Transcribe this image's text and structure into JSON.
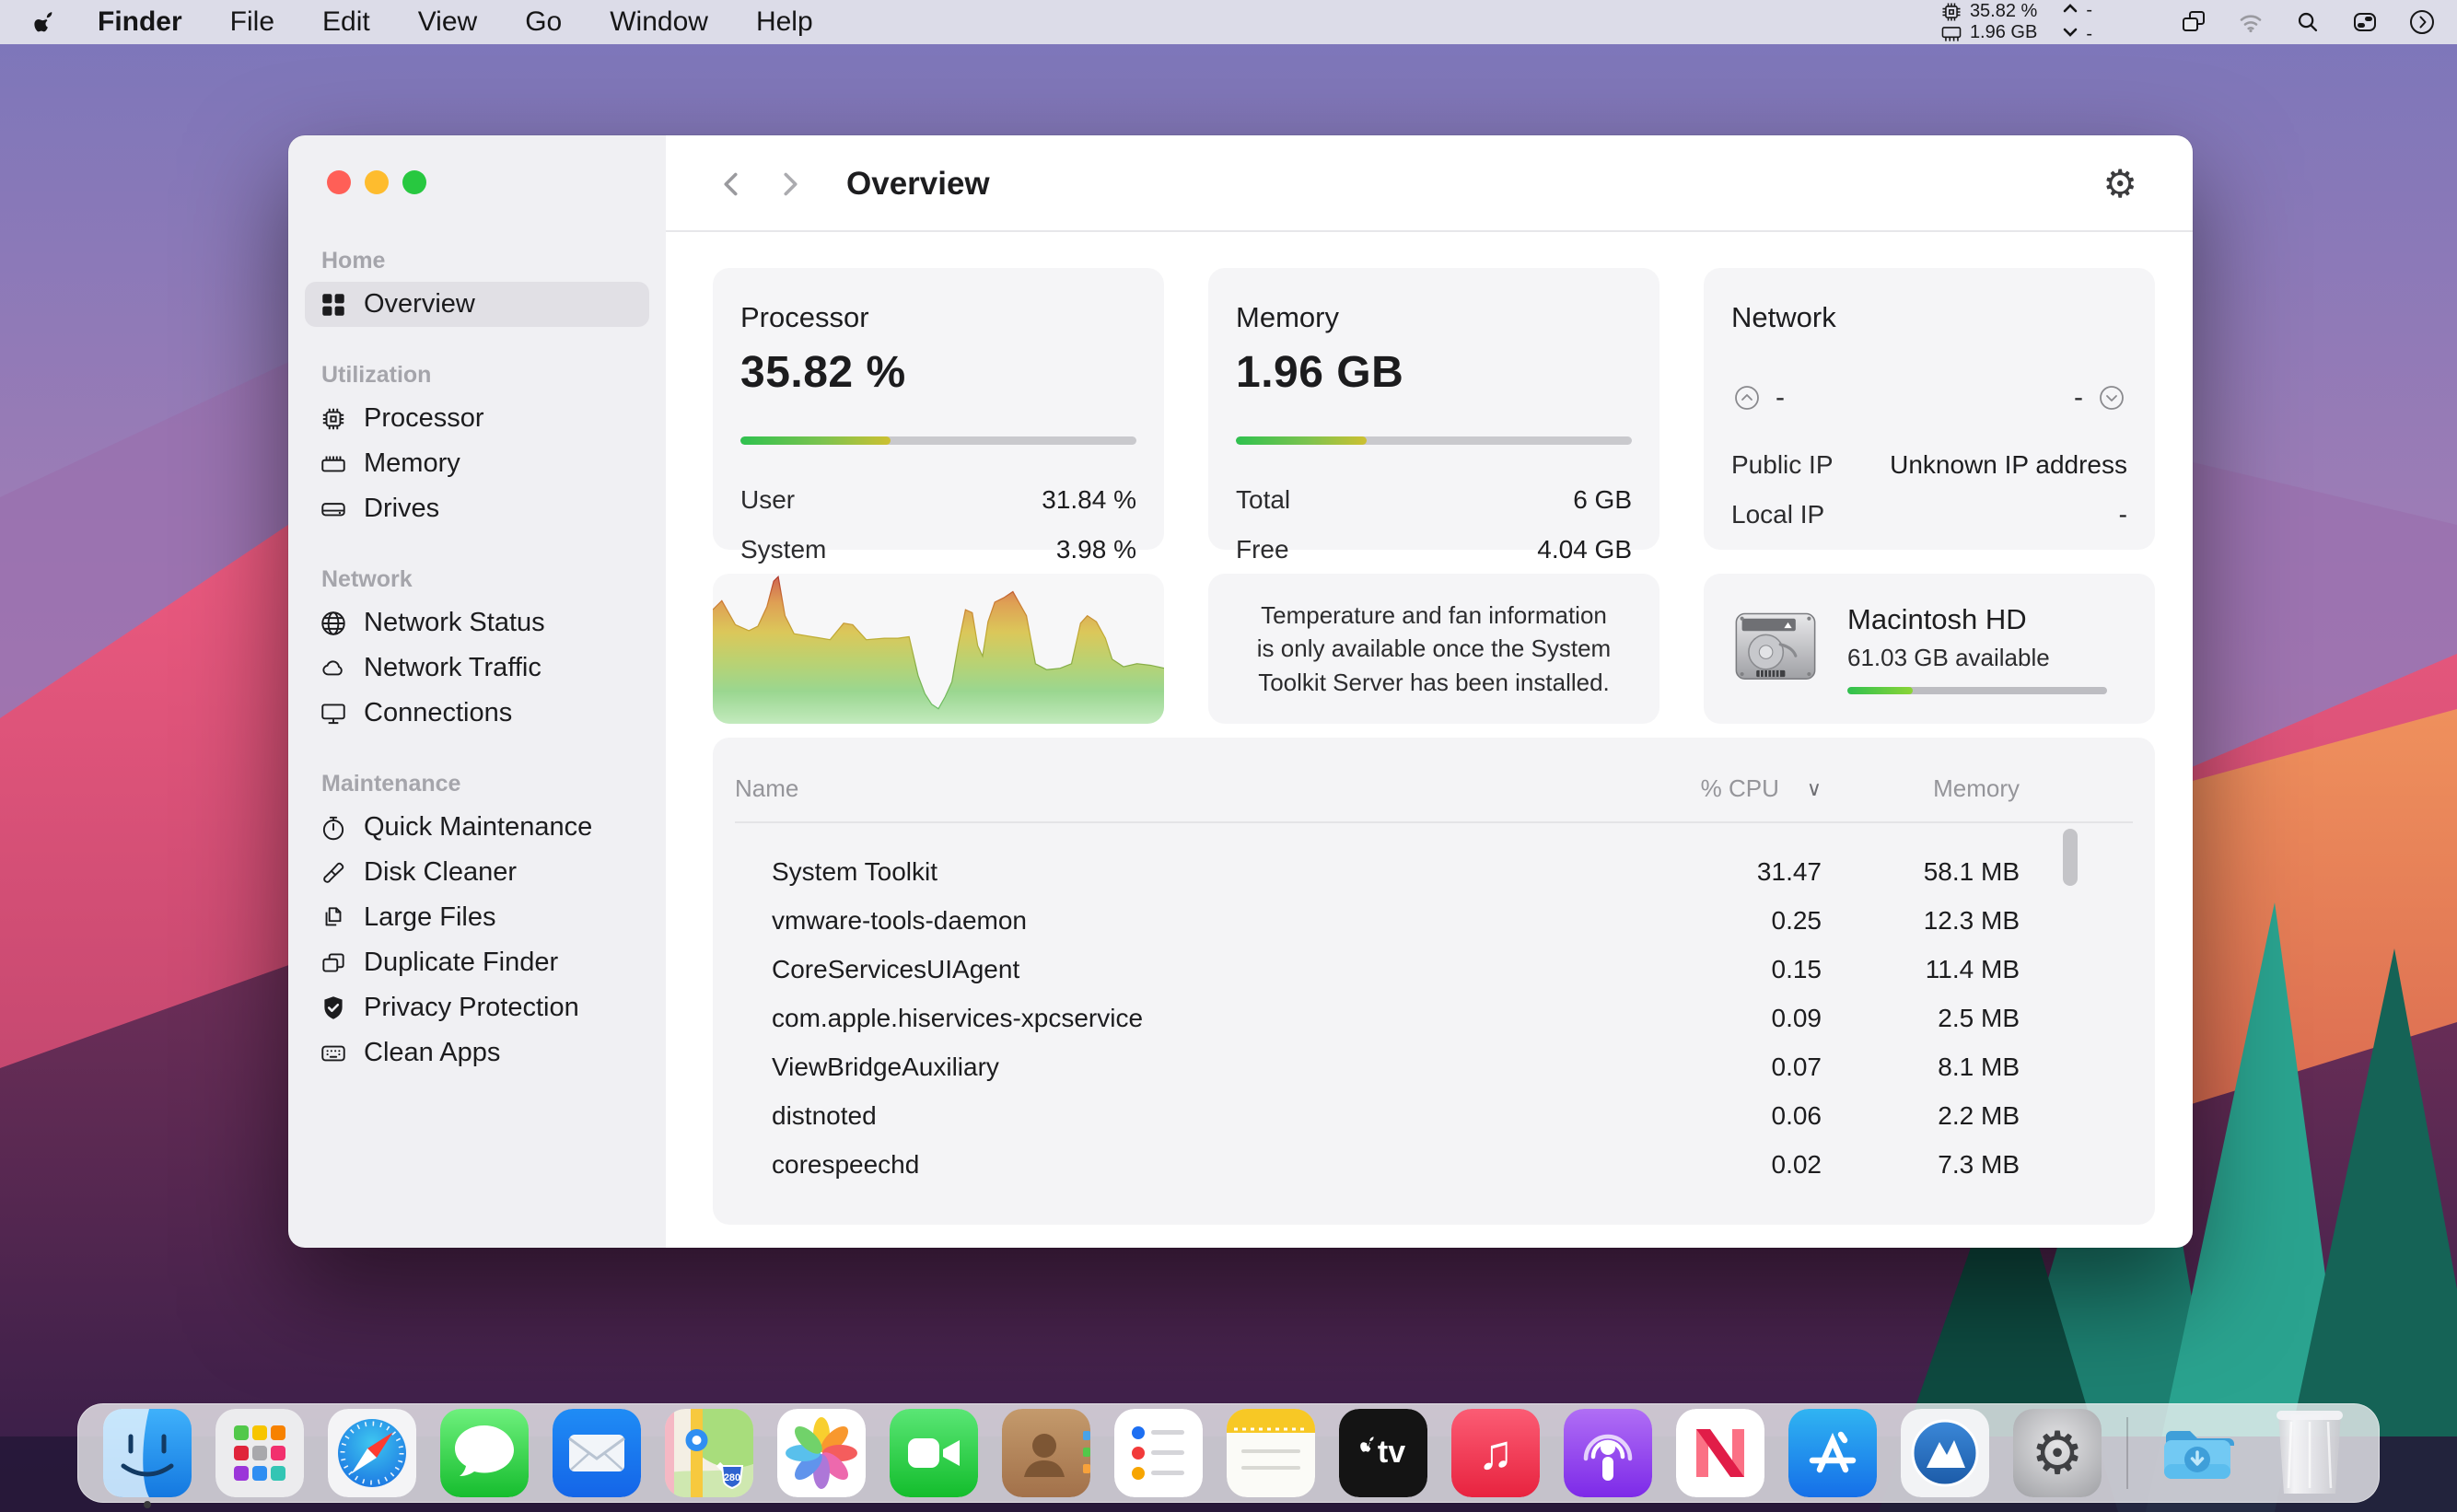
{
  "menu_bar": {
    "items": [
      "Finder",
      "File",
      "Edit",
      "View",
      "Go",
      "Window",
      "Help"
    ],
    "active_item": "Finder",
    "status": {
      "cpu": "35.82 %",
      "ram": "1.96 GB",
      "up": "-",
      "down": "-"
    }
  },
  "window": {
    "header": {
      "title": "Overview"
    },
    "sidebar": {
      "sections": [
        {
          "label": "Home",
          "items": [
            {
              "label": "Overview"
            }
          ]
        },
        {
          "label": "Utilization",
          "items": [
            {
              "label": "Processor"
            },
            {
              "label": "Memory"
            },
            {
              "label": "Drives"
            }
          ]
        },
        {
          "label": "Network",
          "items": [
            {
              "label": "Network Status"
            },
            {
              "label": "Network Traffic"
            },
            {
              "label": "Connections"
            }
          ]
        },
        {
          "label": "Maintenance",
          "items": [
            {
              "label": "Quick Maintenance"
            },
            {
              "label": "Disk Cleaner"
            },
            {
              "label": "Large Files"
            },
            {
              "label": "Duplicate Finder"
            },
            {
              "label": "Privacy Protection"
            },
            {
              "label": "Clean Apps"
            }
          ]
        }
      ]
    },
    "cards": {
      "processor": {
        "title": "Processor",
        "value": "35.82 %",
        "bar_percent": 38,
        "rows": [
          {
            "label": "User",
            "value": "31.84 %"
          },
          {
            "label": "System",
            "value": "3.98 %"
          }
        ]
      },
      "memory": {
        "title": "Memory",
        "value": "1.96 GB",
        "bar_percent": 33,
        "rows": [
          {
            "label": "Total",
            "value": "6 GB"
          },
          {
            "label": "Free",
            "value": "4.04 GB"
          }
        ]
      },
      "network": {
        "title": "Network",
        "upload": "-",
        "download": "-",
        "rows": [
          {
            "label": "Public IP",
            "value": "Unknown IP address"
          },
          {
            "label": "Local IP",
            "value": "-"
          }
        ]
      },
      "temperature": {
        "message": "Temperature and fan information is only available once the System Toolkit Server has been installed."
      },
      "disk": {
        "name": "Macintosh HD",
        "available": "61.03 GB available",
        "bar_percent": 25
      }
    },
    "process_table": {
      "columns": {
        "name": "Name",
        "cpu": "% CPU",
        "memory": "Memory"
      },
      "sorted_by": "% CPU descending",
      "rows": [
        {
          "name": "System Toolkit",
          "cpu": "31.47",
          "memory": "58.1 MB"
        },
        {
          "name": "vmware-tools-daemon",
          "cpu": "0.25",
          "memory": "12.3 MB"
        },
        {
          "name": "CoreServicesUIAgent",
          "cpu": "0.15",
          "memory": "11.4 MB"
        },
        {
          "name": "com.apple.hiservices-xpcservice",
          "cpu": "0.09",
          "memory": "2.5 MB"
        },
        {
          "name": "ViewBridgeAuxiliary",
          "cpu": "0.07",
          "memory": "8.1 MB"
        },
        {
          "name": "distnoted",
          "cpu": "0.06",
          "memory": "2.2 MB"
        },
        {
          "name": "corespeechd",
          "cpu": "0.02",
          "memory": "7.3 MB"
        }
      ]
    }
  },
  "chart_data": {
    "type": "area",
    "title": "CPU usage history sparkline (Processor card)",
    "xlabel": "time (unlabeled)",
    "ylabel": "cpu load (unlabeled, 0 = top/high, 100 = bottom/idle)",
    "legend": "none",
    "grid": false,
    "points": [
      [
        0,
        24
      ],
      [
        2,
        18
      ],
      [
        5,
        34
      ],
      [
        8,
        38
      ],
      [
        10,
        35
      ],
      [
        12,
        22
      ],
      [
        13.5,
        5
      ],
      [
        14.5,
        2
      ],
      [
        16,
        28
      ],
      [
        18,
        40
      ],
      [
        22,
        42
      ],
      [
        26,
        44
      ],
      [
        29,
        33
      ],
      [
        31,
        34
      ],
      [
        34,
        44
      ],
      [
        38,
        43
      ],
      [
        41,
        43
      ],
      [
        43.5,
        42
      ],
      [
        45.5,
        68
      ],
      [
        47,
        80
      ],
      [
        48.5,
        87
      ],
      [
        50,
        90
      ],
      [
        51.5,
        82
      ],
      [
        53,
        72
      ],
      [
        54.5,
        46
      ],
      [
        56,
        24
      ],
      [
        57.5,
        26
      ],
      [
        58.7,
        48
      ],
      [
        59.8,
        55
      ],
      [
        61,
        32
      ],
      [
        62.5,
        19
      ],
      [
        64.5,
        16
      ],
      [
        66.5,
        12
      ],
      [
        68,
        20
      ],
      [
        69.5,
        28
      ],
      [
        71.5,
        60
      ],
      [
        74,
        64
      ],
      [
        77,
        63
      ],
      [
        79.5,
        60
      ],
      [
        81.5,
        33
      ],
      [
        83,
        28
      ],
      [
        85,
        32
      ],
      [
        87,
        43
      ],
      [
        88.5,
        57
      ],
      [
        91,
        62
      ],
      [
        94,
        60
      ],
      [
        97,
        61
      ],
      [
        100,
        63
      ]
    ]
  },
  "dock": {
    "apps": [
      "finder",
      "launchpad",
      "safari",
      "messages",
      "mail",
      "maps",
      "photos",
      "facetime",
      "contacts",
      "reminders",
      "notes",
      "tv",
      "music",
      "podcasts",
      "news",
      "app-store",
      "system-toolkit",
      "system-preferences",
      "downloads",
      "trash"
    ],
    "tv_label": "tv",
    "maps_shield": "280",
    "running_indicator": "finder"
  },
  "colors": {
    "accent_green": "#2fc14f",
    "bar_track": "#c9c9cd",
    "card_bg": "#f5f5f7",
    "sidebar_bg": "#f0f0f3",
    "selected_bg": "#e1e0e5",
    "traffic_red": "#ff5f57",
    "traffic_yellow": "#febc2e",
    "traffic_green": "#28c840"
  }
}
